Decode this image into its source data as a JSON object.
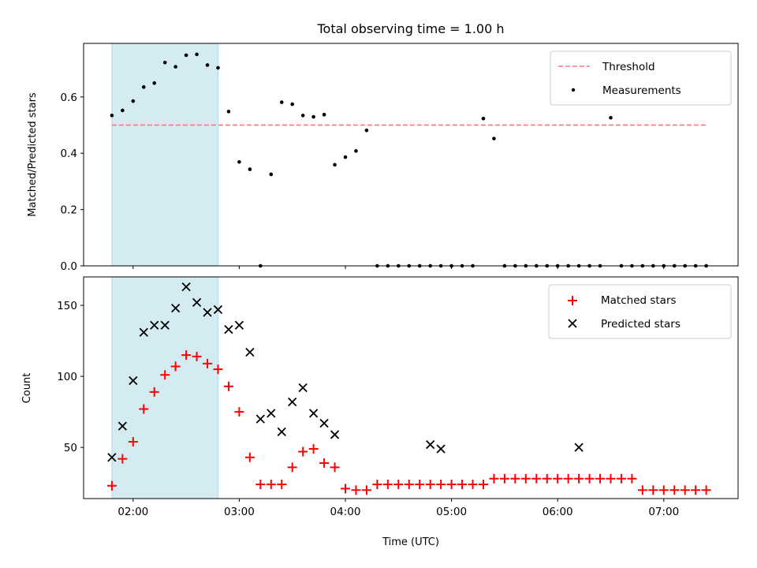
{
  "chart_data": [
    {
      "type": "scatter",
      "title": "Total observing time = 1.00 h",
      "xlabel": "",
      "ylabel": "Matched/Predicted stars",
      "xlim": [
        "01:32",
        "07:42"
      ],
      "ylim": [
        0.0,
        0.79
      ],
      "yticks": [
        0.0,
        0.2,
        0.4,
        0.6
      ],
      "ytick_labels": [
        "0.0",
        "0.2",
        "0.4",
        "0.6"
      ],
      "xticks": [
        "02:00",
        "03:00",
        "04:00",
        "05:00",
        "06:00",
        "07:00"
      ],
      "xtick_labels_visible": false,
      "shaded_region": {
        "start": "01:48",
        "end": "02:48",
        "color": "#add8e6"
      },
      "legend": {
        "placement": "upper-right"
      },
      "threshold": {
        "name": "Threshold",
        "value": 0.5,
        "x_start": "01:48",
        "x_end": "07:24",
        "color": "#ff7777"
      },
      "series": [
        {
          "name": "Measurements",
          "marker": "dot",
          "color": "#000000",
          "x": [
            "01:48",
            "01:54",
            "02:00",
            "02:06",
            "02:12",
            "02:18",
            "02:24",
            "02:30",
            "02:36",
            "02:42",
            "02:48",
            "02:54",
            "03:00",
            "03:06",
            "03:12",
            "03:18",
            "03:24",
            "03:30",
            "03:36",
            "03:42",
            "03:48",
            "03:54",
            "04:00",
            "04:06",
            "04:12",
            "04:18",
            "04:24",
            "04:30",
            "04:36",
            "04:42",
            "04:48",
            "04:54",
            "05:00",
            "05:06",
            "05:12",
            "05:18",
            "05:24",
            "05:30",
            "05:36",
            "05:42",
            "05:48",
            "05:54",
            "06:00",
            "06:06",
            "06:12",
            "06:18",
            "06:24",
            "06:30",
            "06:36",
            "06:42",
            "06:48",
            "06:54",
            "07:00",
            "07:06",
            "07:12",
            "07:18",
            "07:24"
          ],
          "y": [
            0.534,
            0.552,
            0.585,
            0.635,
            0.649,
            0.722,
            0.707,
            0.748,
            0.751,
            0.713,
            0.703,
            0.548,
            0.369,
            0.343,
            0.0,
            0.325,
            0.581,
            0.574,
            0.534,
            0.529,
            0.537,
            0.359,
            0.386,
            0.408,
            0.481,
            0.0,
            0.0,
            0.0,
            0.0,
            0.0,
            0.0,
            0.0,
            0.0,
            0.0,
            0.0,
            0.523,
            0.452,
            0.0,
            0.0,
            0.0,
            0.0,
            0.0,
            0.0,
            0.0,
            0.0,
            0.0,
            0.0,
            0.526,
            0.0,
            0.0,
            0.0,
            0.0,
            0.0,
            0.0,
            0.0,
            0.0,
            0.0
          ],
          "_note_omit": true
        }
      ]
    },
    {
      "type": "scatter",
      "title": "",
      "xlabel": "Time (UTC)",
      "ylabel": "Count",
      "xlim": [
        "01:32",
        "07:42"
      ],
      "ylim": [
        14,
        170
      ],
      "yticks": [
        50,
        100,
        150
      ],
      "xticks": [
        "02:00",
        "03:00",
        "04:00",
        "05:00",
        "06:00",
        "07:00"
      ],
      "xtick_labels": [
        "02:00",
        "03:00",
        "04:00",
        "05:00",
        "06:00",
        "07:00"
      ],
      "shaded_region": {
        "start": "01:48",
        "end": "02:48",
        "color": "#add8e6"
      },
      "legend": {
        "placement": "upper-right"
      },
      "series": [
        {
          "name": "Matched stars",
          "marker": "plus",
          "color": "#ff0000",
          "x": [
            "01:48",
            "01:54",
            "02:00",
            "02:06",
            "02:12",
            "02:18",
            "02:24",
            "02:30",
            "02:36",
            "02:42",
            "02:48",
            "02:54",
            "03:00",
            "03:06",
            "03:12",
            "03:18",
            "03:24",
            "03:30",
            "03:36",
            "03:42",
            "03:48",
            "03:54",
            "04:00",
            "04:06",
            "04:12",
            "04:18",
            "04:24",
            "04:30",
            "04:36",
            "04:42",
            "04:48",
            "04:54",
            "05:00",
            "05:06",
            "05:12",
            "05:18",
            "05:24",
            "05:30",
            "05:36",
            "05:42",
            "05:48",
            "05:54",
            "06:00",
            "06:06",
            "06:12",
            "06:18",
            "06:24",
            "06:30",
            "06:36",
            "06:42",
            "06:48",
            "06:54",
            "07:00",
            "07:06",
            "07:12",
            "07:18",
            "07:24"
          ],
          "y": [
            23,
            42,
            54,
            77,
            89,
            101,
            107,
            115,
            114,
            109,
            105,
            93,
            75,
            43,
            24,
            24,
            24,
            36,
            47,
            49,
            39,
            36,
            21,
            20,
            20,
            24,
            24,
            24,
            24,
            24,
            24,
            24,
            24,
            24,
            24,
            24,
            28,
            28,
            28,
            28,
            28,
            28,
            28,
            28,
            28,
            28,
            28,
            28,
            28,
            28,
            20,
            20,
            20,
            20,
            20,
            20,
            20
          ]
        },
        {
          "name": "Predicted stars",
          "marker": "x",
          "color": "#000000",
          "x": [
            "01:48",
            "01:54",
            "02:00",
            "02:06",
            "02:12",
            "02:18",
            "02:24",
            "02:30",
            "02:36",
            "02:42",
            "02:48",
            "02:54",
            "03:00",
            "03:06",
            "03:12",
            "03:18",
            "03:24",
            "03:30",
            "03:36",
            "03:42",
            "03:48",
            "03:54",
            "04:48",
            "04:54",
            "06:12"
          ],
          "y": [
            43,
            65,
            97,
            131,
            136,
            136,
            148,
            163,
            152,
            145,
            147,
            133,
            136,
            117,
            70,
            74,
            61,
            82,
            92,
            74,
            67,
            59,
            52,
            49,
            50
          ]
        }
      ]
    }
  ]
}
